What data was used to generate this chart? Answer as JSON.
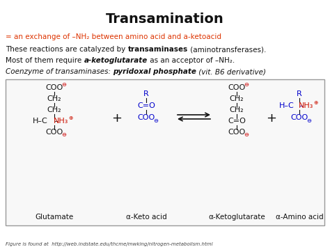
{
  "title": "Transamination",
  "footer": "Figure is found at  http://web.indstate.edu/thcme/mwking/nitrogen-metabolism.html",
  "bg_color": "#ffffff",
  "red_color": "#cc1100",
  "blue_color": "#0000cc",
  "black_color": "#111111",
  "orange_red": "#dd2200",
  "label_glutamate": "Glutamate",
  "label_keto_acid": "α-Keto acid",
  "label_ketoglutarate": "α-Ketoglutarate",
  "label_amino_acid": "α-Amino acid"
}
